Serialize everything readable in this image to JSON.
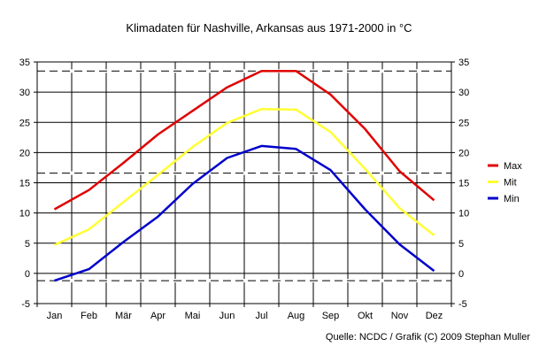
{
  "chart_data": {
    "type": "line",
    "title": "Klimadaten für Nashville, Arkansas aus 1971-2000 in °C",
    "categories": [
      "Jan",
      "Feb",
      "Mär",
      "Apr",
      "Mai",
      "Jun",
      "Jul",
      "Aug",
      "Sep",
      "Okt",
      "Nov",
      "Dez"
    ],
    "ylim": [
      -5,
      35
    ],
    "yticks": [
      -5,
      0,
      5,
      10,
      15,
      20,
      25,
      30,
      35
    ],
    "grid": true,
    "legend_position": "right",
    "source": "Quelle: NCDC / Grafik (C) 2009 Stephan Muller",
    "reference_lines": [
      33.5,
      16.6,
      -1.2
    ],
    "series": [
      {
        "name": "Max",
        "color": "#e00000",
        "values": [
          10.6,
          13.8,
          18.3,
          23.0,
          26.9,
          30.8,
          33.5,
          33.5,
          29.6,
          23.9,
          16.9,
          12.1
        ]
      },
      {
        "name": "Mit",
        "color": "#ffff33",
        "values": [
          4.7,
          7.3,
          11.8,
          16.3,
          20.9,
          24.9,
          27.2,
          27.1,
          23.4,
          17.3,
          10.8,
          6.3
        ]
      },
      {
        "name": "Min",
        "color": "#0000cc",
        "values": [
          -1.2,
          0.7,
          5.2,
          9.4,
          14.8,
          19.1,
          21.1,
          20.6,
          17.1,
          10.6,
          4.8,
          0.4
        ]
      }
    ]
  }
}
